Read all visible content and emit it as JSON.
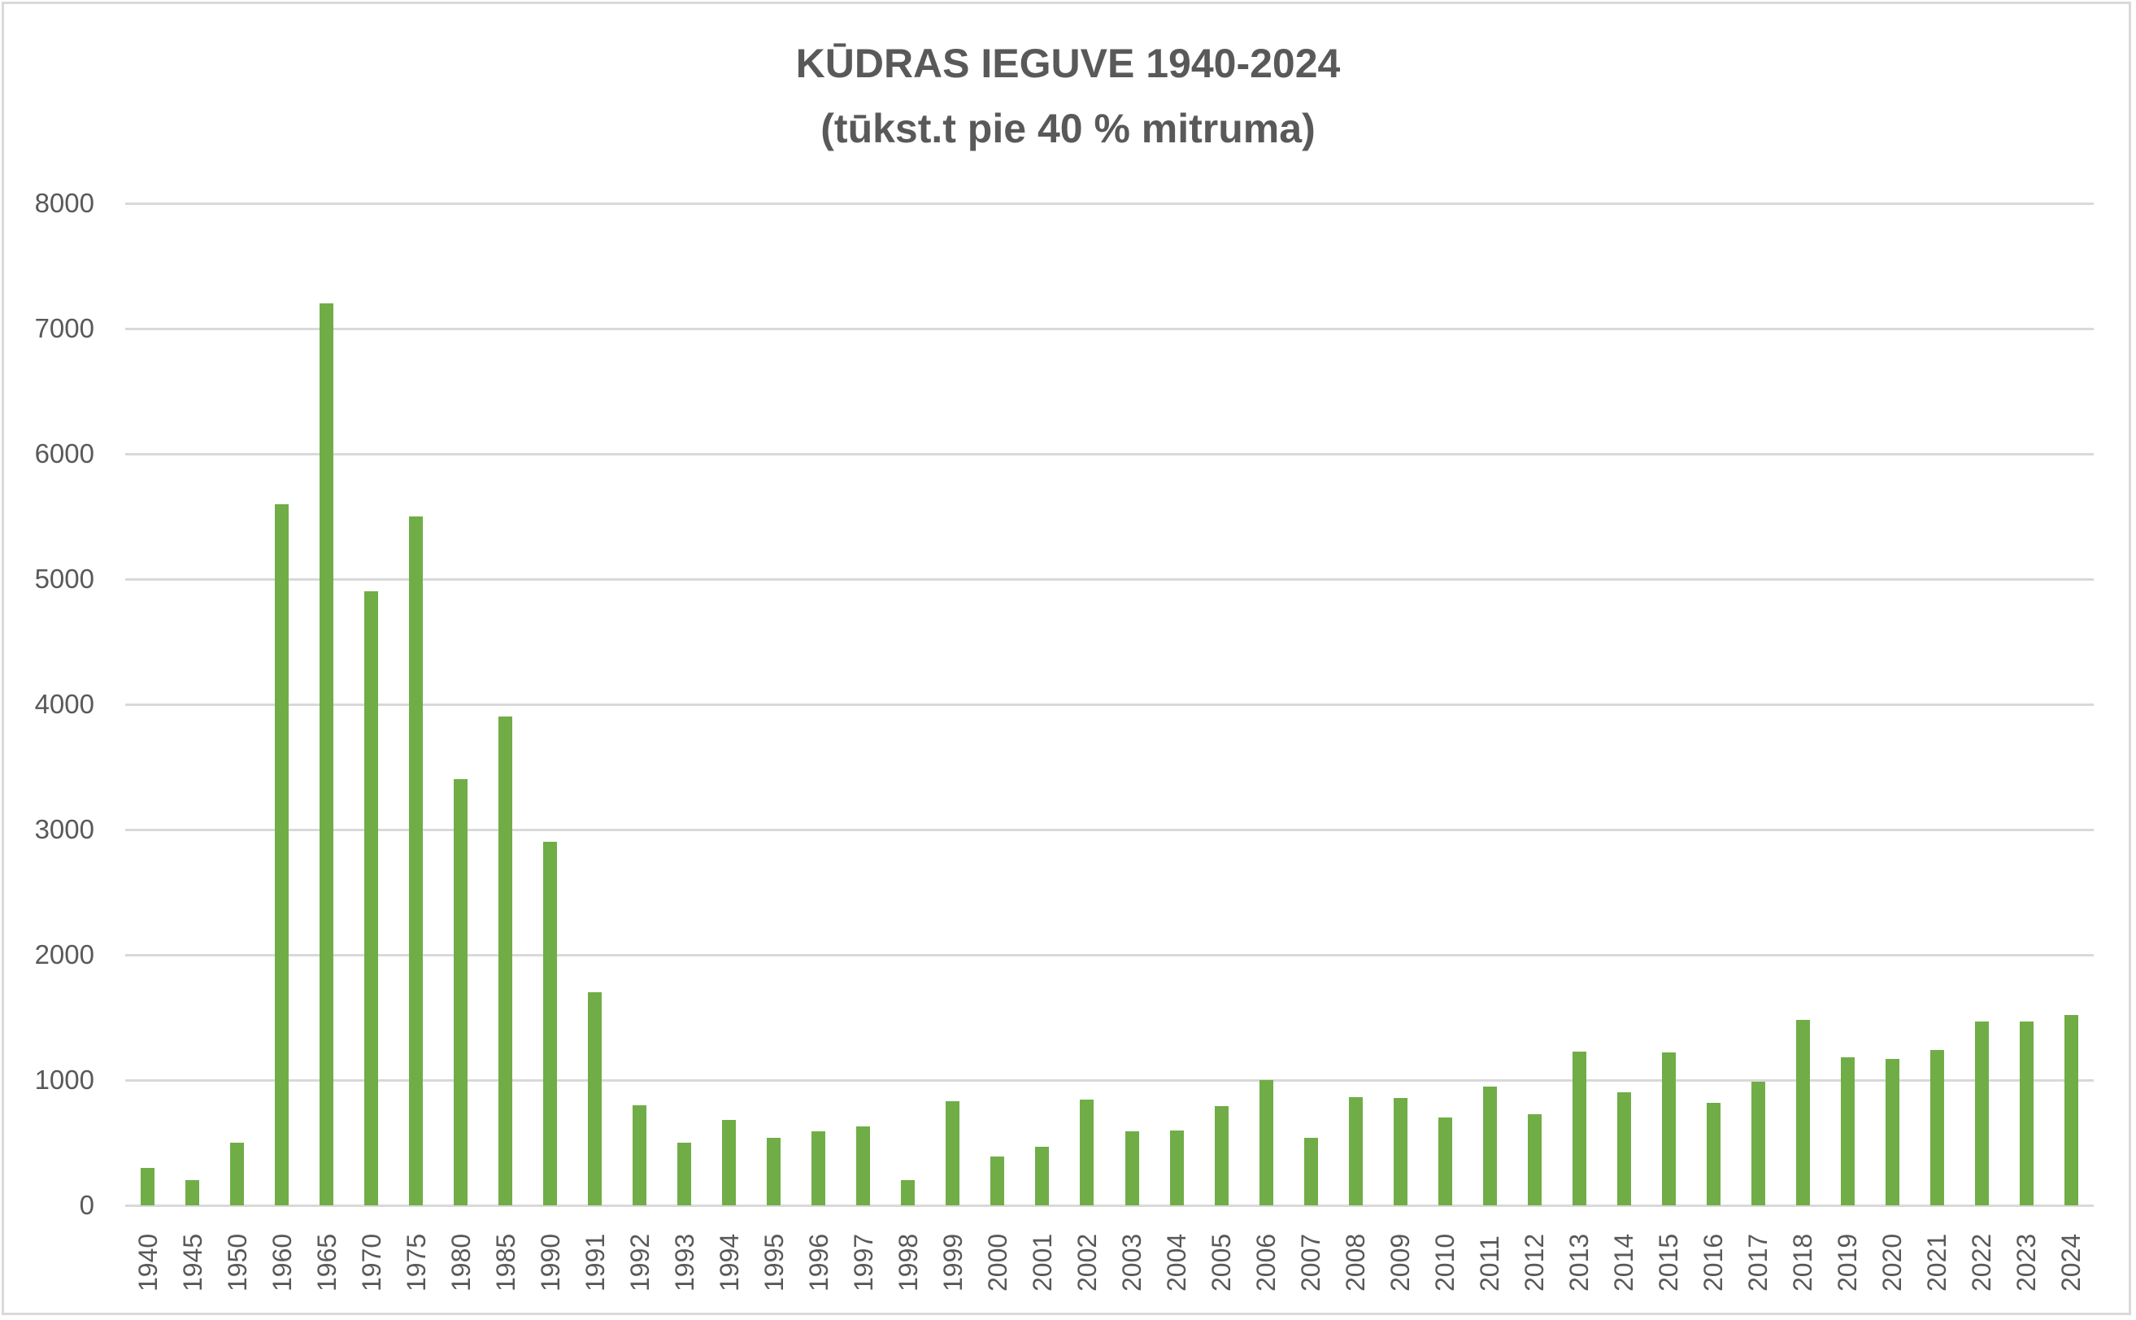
{
  "chart_data": {
    "type": "bar",
    "title": "KŪDRAS IEGUVE 1940-2024",
    "subtitle": "(tūkst.t pie 40 % mitruma)",
    "xlabel": "",
    "ylabel": "",
    "ylim": [
      0,
      8000
    ],
    "yticks": [
      "0",
      "1000",
      "2000",
      "3000",
      "4000",
      "5000",
      "6000",
      "7000",
      "8000"
    ],
    "grid": true,
    "legend": "none",
    "bar_color": "#70ad47",
    "categories": [
      "1940",
      "1945",
      "1950",
      "1960",
      "1965",
      "1970",
      "1975",
      "1980",
      "1985",
      "1990",
      "1991",
      "1992",
      "1993",
      "1994",
      "1995",
      "1996",
      "1997",
      "1998",
      "1999",
      "2000",
      "2001",
      "2002",
      "2003",
      "2004",
      "2005",
      "2006",
      "2007",
      "2008",
      "2009",
      "2010",
      "2011",
      "2012",
      "2013",
      "2014",
      "2015",
      "2016",
      "2017",
      "2018",
      "2019",
      "2020",
      "2021",
      "2022",
      "2023",
      "2024"
    ],
    "values": [
      300,
      200,
      500,
      5600,
      7200,
      4900,
      5500,
      3400,
      3900,
      2900,
      1700,
      800,
      500,
      680,
      540,
      590,
      630,
      200,
      830,
      390,
      470,
      845,
      590,
      600,
      790,
      1000,
      540,
      865,
      858,
      700,
      950,
      730,
      1230,
      900,
      1220,
      820,
      990,
      1480,
      1180,
      1170,
      1240,
      1470,
      1470,
      1520
    ]
  },
  "title": {
    "line1": "KŪDRAS IEGUVE 1940-2024",
    "line2": "(tūkst.t pie 40 % mitruma)"
  }
}
